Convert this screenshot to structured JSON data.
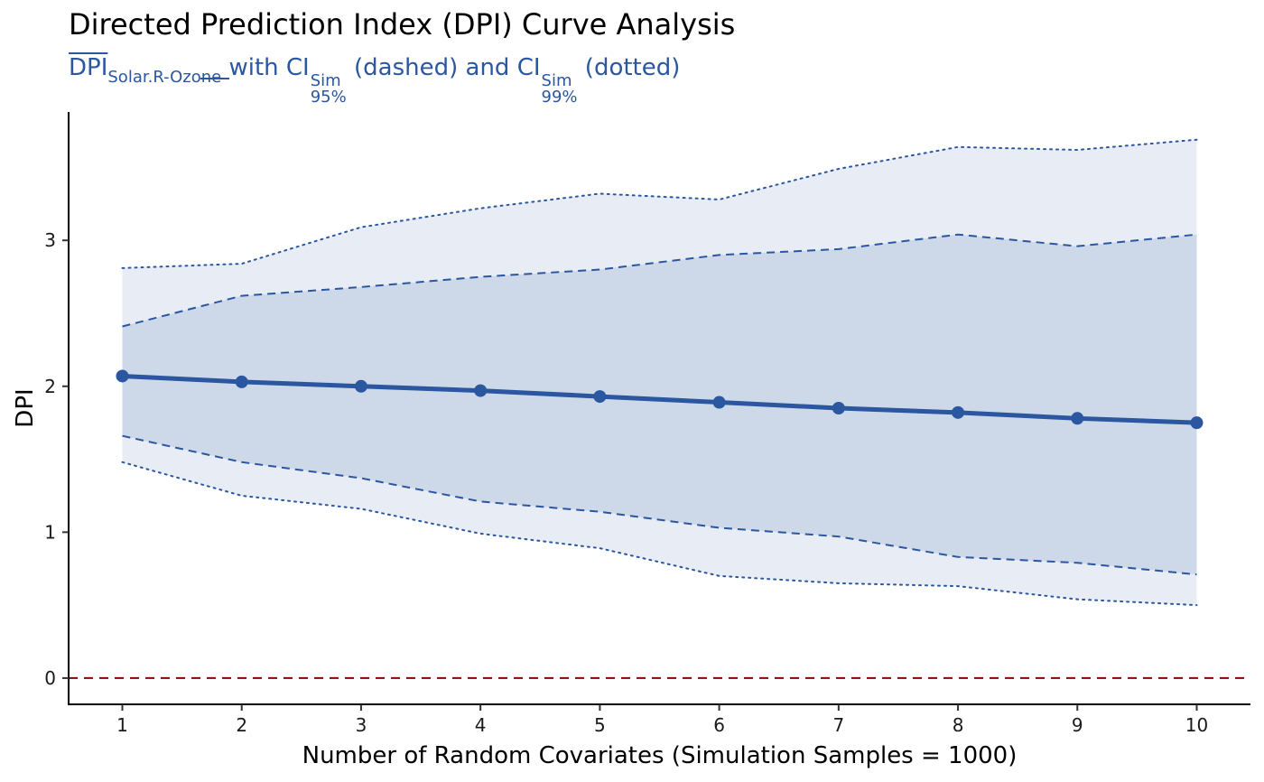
{
  "chart_data": {
    "type": "line",
    "title": "Directed Prediction Index (DPI) Curve Analysis",
    "subtitle": {
      "dpi": "DPI",
      "pair": "Solar.R-Ozone",
      "with": " with CI",
      "sim": "Sim",
      "ci95": "95%",
      "dashed": " (dashed) and CI",
      "ci99": "99%",
      "dotted": " (dotted)"
    },
    "xlabel": "Number of Random Covariates (Simulation Samples = 1000)",
    "ylabel": "DPI",
    "x": [
      1,
      2,
      3,
      4,
      5,
      6,
      7,
      8,
      9,
      10
    ],
    "xlim": [
      0.55,
      10.45
    ],
    "ylim": [
      -0.18,
      3.88
    ],
    "xticks": [
      "1",
      "2",
      "3",
      "4",
      "5",
      "6",
      "7",
      "8",
      "9",
      "10"
    ],
    "yticks": [
      "0",
      "1",
      "2",
      "3"
    ],
    "series": [
      {
        "values": [
          2.07,
          2.03,
          2.0,
          1.97,
          1.93,
          1.89,
          1.85,
          1.82,
          1.78,
          1.75
        ]
      }
    ],
    "ci95": {
      "upper": [
        2.41,
        2.62,
        2.68,
        2.75,
        2.8,
        2.9,
        2.94,
        3.04,
        2.96,
        3.04
      ],
      "lower": [
        1.66,
        1.48,
        1.37,
        1.21,
        1.14,
        1.03,
        0.97,
        0.83,
        0.79,
        0.71
      ]
    },
    "ci99": {
      "upper": [
        2.81,
        2.84,
        3.09,
        3.22,
        3.32,
        3.28,
        3.49,
        3.64,
        3.62,
        3.69
      ],
      "lower": [
        1.48,
        1.25,
        1.16,
        0.99,
        0.89,
        0.7,
        0.65,
        0.63,
        0.54,
        0.5
      ]
    },
    "reference_line": {
      "y": 0,
      "color": "#8B0000",
      "style": "dashed"
    },
    "colors": {
      "line": "#2B56A0",
      "band95": "#CDD8E8",
      "band99": "#E8EDF5"
    },
    "grid": false,
    "legend": "none"
  }
}
